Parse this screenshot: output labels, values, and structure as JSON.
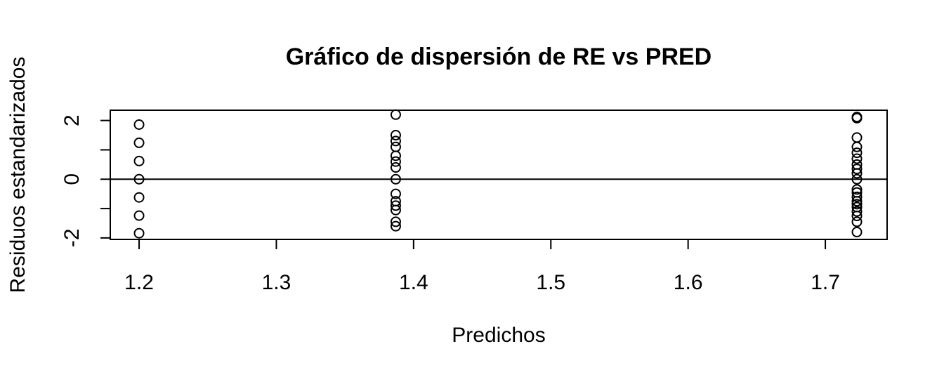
{
  "chart_data": {
    "type": "scatter",
    "title": "Gráfico de dispersión de RE vs PRED",
    "xlabel": "Predichos",
    "ylabel": "Residuos estandarizados",
    "xlim": [
      1.179,
      1.745
    ],
    "ylim": [
      -2.05,
      2.35
    ],
    "x_ticks": [
      1.2,
      1.3,
      1.4,
      1.5,
      1.6,
      1.7
    ],
    "x_tick_labels": [
      "1.2",
      "1.3",
      "1.4",
      "1.5",
      "1.6",
      "1.7"
    ],
    "y_ticks": [
      -2,
      -1,
      0,
      1,
      2
    ],
    "y_tick_labels": [
      "-2",
      "",
      "0",
      "",
      "2"
    ],
    "reference_line_y": 0,
    "series": [
      {
        "points": [
          {
            "x": 1.2,
            "y": 1.86
          },
          {
            "x": 1.2,
            "y": 1.24
          },
          {
            "x": 1.2,
            "y": 0.62
          },
          {
            "x": 1.2,
            "y": 0.0
          },
          {
            "x": 1.2,
            "y": -0.62
          },
          {
            "x": 1.2,
            "y": -1.24
          },
          {
            "x": 1.2,
            "y": -1.84
          },
          {
            "x": 1.387,
            "y": 2.2
          },
          {
            "x": 1.387,
            "y": 1.5
          },
          {
            "x": 1.387,
            "y": 1.3
          },
          {
            "x": 1.387,
            "y": 1.1
          },
          {
            "x": 1.387,
            "y": 0.8
          },
          {
            "x": 1.387,
            "y": 0.6
          },
          {
            "x": 1.387,
            "y": 0.4
          },
          {
            "x": 1.387,
            "y": 0.0
          },
          {
            "x": 1.387,
            "y": -0.5
          },
          {
            "x": 1.387,
            "y": -0.75
          },
          {
            "x": 1.387,
            "y": -0.9
          },
          {
            "x": 1.387,
            "y": -1.05
          },
          {
            "x": 1.387,
            "y": -1.45
          },
          {
            "x": 1.387,
            "y": -1.6
          },
          {
            "x": 1.723,
            "y": 2.12
          },
          {
            "x": 1.723,
            "y": 2.08
          },
          {
            "x": 1.723,
            "y": 1.42
          },
          {
            "x": 1.723,
            "y": 1.1
          },
          {
            "x": 1.723,
            "y": 0.9
          },
          {
            "x": 1.723,
            "y": 0.7
          },
          {
            "x": 1.723,
            "y": 0.5
          },
          {
            "x": 1.723,
            "y": 0.35
          },
          {
            "x": 1.723,
            "y": 0.2
          },
          {
            "x": 1.723,
            "y": 0.0
          },
          {
            "x": 1.723,
            "y": -0.35
          },
          {
            "x": 1.723,
            "y": -0.45
          },
          {
            "x": 1.723,
            "y": -0.6
          },
          {
            "x": 1.723,
            "y": -0.75
          },
          {
            "x": 1.723,
            "y": -0.85
          },
          {
            "x": 1.723,
            "y": -0.95
          },
          {
            "x": 1.723,
            "y": -1.1
          },
          {
            "x": 1.723,
            "y": -1.25
          },
          {
            "x": 1.723,
            "y": -1.45
          },
          {
            "x": 1.723,
            "y": -1.8
          }
        ]
      }
    ],
    "grid": false,
    "marker": "open-circle"
  }
}
